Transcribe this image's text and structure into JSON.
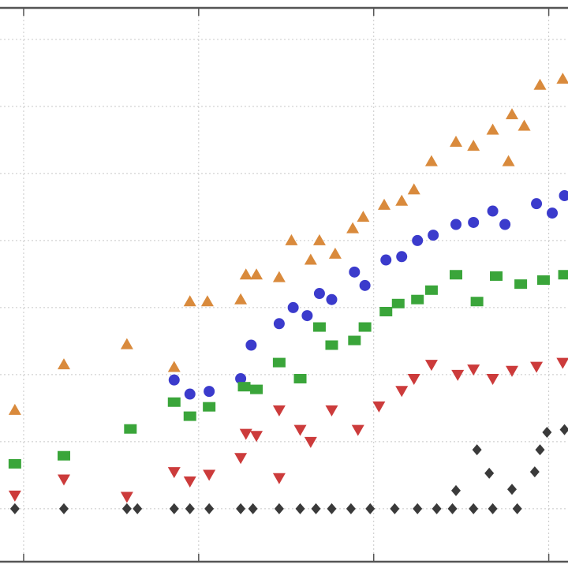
{
  "chart_data": {
    "type": "scatter",
    "grid": true,
    "xlim": [
      -0.135,
      3.11
    ],
    "ylim": [
      -0.79,
      7.47
    ],
    "xticks": [
      0,
      1,
      2,
      3
    ],
    "yticks": [
      0,
      1,
      2,
      3,
      4,
      5,
      6,
      7
    ],
    "series": [
      {
        "color": "#d98a3c",
        "marker": "^",
        "x": [
          -0.05,
          0.23,
          0.59,
          0.86,
          0.95,
          1.05,
          1.24,
          1.27,
          1.33,
          1.46,
          1.53,
          1.64,
          1.69,
          1.78,
          1.88,
          1.94,
          2.06,
          2.16,
          2.23,
          2.33,
          2.47,
          2.57,
          2.68,
          2.79,
          2.86,
          2.95,
          3.08,
          2.77
        ],
        "values": [
          1.47,
          2.15,
          2.45,
          2.11,
          3.09,
          3.09,
          3.12,
          3.49,
          3.49,
          3.45,
          4.0,
          3.71,
          4.0,
          3.8,
          4.18,
          4.35,
          4.53,
          4.59,
          4.76,
          5.18,
          5.47,
          5.41,
          5.65,
          5.88,
          5.71,
          6.32,
          6.41,
          5.18
        ]
      },
      {
        "color": "#3b3bcc",
        "marker": "o",
        "x": [
          0.86,
          0.95,
          1.06,
          1.24,
          1.3,
          1.46,
          1.54,
          1.62,
          1.69,
          1.76,
          1.89,
          1.95,
          2.07,
          2.16,
          2.25,
          2.34,
          2.47,
          2.57,
          2.68,
          2.75,
          2.93,
          3.02,
          3.09
        ],
        "values": [
          1.92,
          1.71,
          1.75,
          1.94,
          2.44,
          2.76,
          3.0,
          2.88,
          3.21,
          3.12,
          3.53,
          3.33,
          3.71,
          3.76,
          4.0,
          4.08,
          4.24,
          4.27,
          4.44,
          4.24,
          4.55,
          4.41,
          4.67
        ]
      },
      {
        "color": "#3aa53a",
        "marker": "s",
        "x": [
          -0.05,
          0.23,
          0.61,
          0.86,
          0.95,
          1.06,
          1.26,
          1.33,
          1.46,
          1.58,
          1.69,
          1.76,
          1.89,
          1.95,
          2.07,
          2.14,
          2.25,
          2.33,
          2.47,
          2.59,
          2.7,
          2.84,
          2.97,
          3.09
        ],
        "values": [
          0.67,
          0.79,
          1.19,
          1.59,
          1.38,
          1.52,
          1.82,
          1.78,
          2.18,
          1.94,
          2.71,
          2.44,
          2.51,
          2.71,
          2.94,
          3.06,
          3.12,
          3.26,
          3.49,
          3.09,
          3.47,
          3.35,
          3.41,
          3.49
        ]
      },
      {
        "color": "#cc3b3b",
        "marker": "v",
        "x": [
          -0.05,
          0.23,
          0.59,
          0.86,
          0.95,
          1.06,
          1.24,
          1.27,
          1.33,
          1.46,
          1.46,
          1.58,
          1.64,
          1.76,
          1.91,
          2.03,
          2.16,
          2.23,
          2.33,
          2.48,
          2.57,
          2.68,
          2.79,
          2.93,
          3.08
        ],
        "values": [
          0.2,
          0.44,
          0.18,
          0.55,
          0.41,
          0.51,
          0.76,
          1.12,
          1.09,
          1.47,
          0.46,
          1.18,
          1.0,
          1.47,
          1.18,
          1.53,
          1.76,
          1.94,
          2.15,
          2.0,
          2.08,
          1.94,
          2.06,
          2.12,
          2.18
        ]
      },
      {
        "color": "#3a3a3a",
        "marker": "D",
        "x": [
          -0.05,
          0.23,
          0.59,
          0.65,
          0.86,
          0.95,
          1.06,
          1.24,
          1.31,
          1.46,
          1.58,
          1.67,
          1.76,
          1.87,
          1.98,
          2.12,
          2.25,
          2.36,
          2.45,
          2.57,
          2.68,
          2.82,
          2.59,
          2.66,
          2.79,
          2.92,
          2.95,
          2.99,
          3.09,
          2.47
        ],
        "values": [
          0,
          0,
          0,
          0,
          0,
          0,
          0,
          0,
          0,
          0,
          0,
          0,
          0,
          0,
          0,
          0,
          0,
          0,
          0,
          0,
          0,
          0,
          0.88,
          0.53,
          0.29,
          0.55,
          0.88,
          1.14,
          1.18,
          0.27
        ]
      }
    ]
  }
}
